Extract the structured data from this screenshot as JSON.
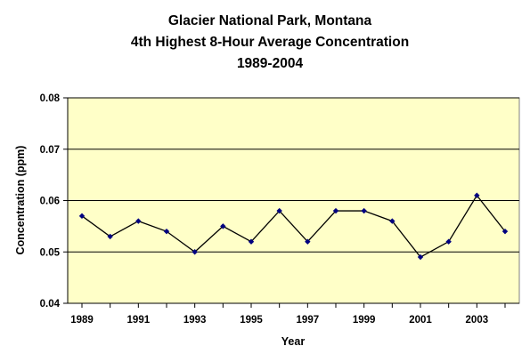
{
  "chart_data": {
    "type": "line",
    "title": [
      "Glacier National Park, Montana",
      "4th Highest 8-Hour Average Concentration",
      "1989-2004"
    ],
    "xlabel": "Year",
    "ylabel": "Concentration (ppm)",
    "x": [
      1989,
      1990,
      1991,
      1992,
      1993,
      1994,
      1995,
      1996,
      1997,
      1998,
      1999,
      2000,
      2001,
      2002,
      2003,
      2004
    ],
    "values": [
      0.057,
      0.053,
      0.056,
      0.054,
      0.05,
      0.055,
      0.052,
      0.058,
      0.052,
      0.058,
      0.058,
      0.056,
      0.049,
      0.052,
      0.061,
      0.054
    ],
    "x_tick_labels": [
      "1989",
      "1991",
      "1993",
      "1995",
      "1997",
      "1999",
      "2001",
      "2003"
    ],
    "y_tick_labels": [
      "0.04",
      "0.05",
      "0.06",
      "0.07",
      "0.08"
    ],
    "ylim": [
      0.04,
      0.08
    ],
    "grid": "horizontal",
    "legend": "none",
    "colors": {
      "plot_background": "#ffffc8",
      "line": "#000000",
      "marker": "#000080",
      "grid": "#000000"
    }
  }
}
